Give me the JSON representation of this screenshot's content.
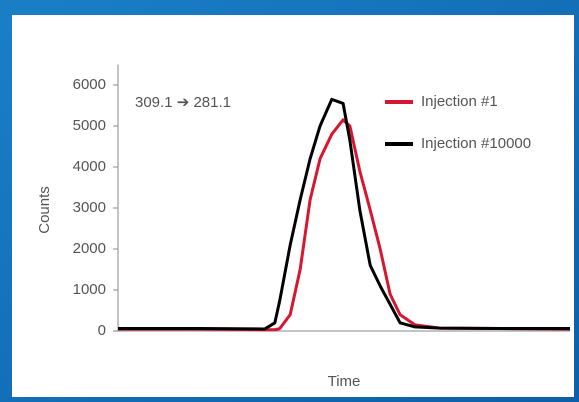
{
  "chart_data": {
    "type": "line",
    "annotation": "309.1 ➔ 281.1",
    "x_label": "Time",
    "y_label": "Counts",
    "x": [
      0,
      18.1,
      32.5,
      34.7,
      35.8,
      38.1,
      40.3,
      42.5,
      44.7,
      47.3,
      49.8,
      51.3,
      53.5,
      55.8,
      58,
      60.2,
      62.4,
      65.7,
      71.2,
      84.5,
      100
    ],
    "xlim": [
      0,
      100
    ],
    "ylim": [
      0,
      6500
    ],
    "yticks": [
      0,
      1000,
      2000,
      3000,
      4000,
      5000,
      6000
    ],
    "legend": "top-right",
    "series": [
      {
        "name": "Injection #1",
        "color": "#d7172f",
        "values": [
          50,
          50,
          30,
          30,
          60,
          400,
          1500,
          3200,
          4200,
          4800,
          5150,
          5000,
          3900,
          2950,
          2000,
          900,
          400,
          150,
          70,
          60,
          50
        ]
      },
      {
        "name": "Injection #10000",
        "color": "#000000",
        "values": [
          60,
          60,
          50,
          200,
          750,
          2100,
          3200,
          4200,
          5000,
          5650,
          5550,
          4650,
          2950,
          1600,
          1100,
          650,
          200,
          100,
          70,
          60,
          60
        ]
      }
    ]
  }
}
